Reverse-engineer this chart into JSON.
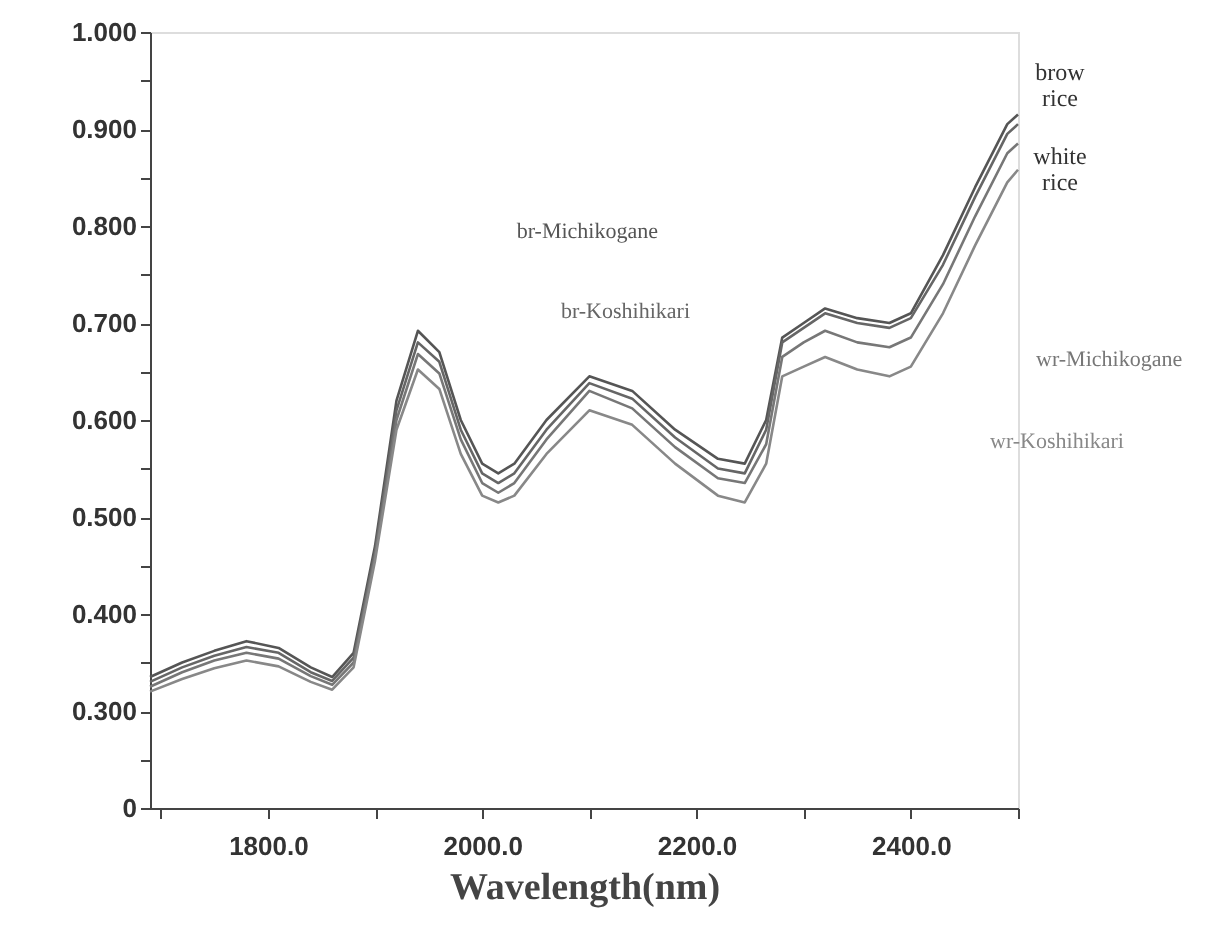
{
  "chart_data": {
    "type": "line",
    "xlabel": "Wavelength(nm)",
    "x": [
      1690,
      1720,
      1750,
      1780,
      1810,
      1840,
      1860,
      1880,
      1900,
      1920,
      1940,
      1960,
      1980,
      2000,
      2015,
      2030,
      2060,
      2100,
      2140,
      2180,
      2220,
      2245,
      2265,
      2280,
      2300,
      2320,
      2350,
      2380,
      2400,
      2430,
      2460,
      2490,
      2500
    ],
    "series": [
      {
        "name": "br-Michikogane",
        "color": "#555555",
        "values": [
          0.335,
          0.35,
          0.362,
          0.372,
          0.365,
          0.345,
          0.335,
          0.36,
          0.47,
          0.62,
          0.692,
          0.67,
          0.6,
          0.555,
          0.545,
          0.555,
          0.6,
          0.645,
          0.63,
          0.59,
          0.56,
          0.555,
          0.6,
          0.685,
          0.7,
          0.715,
          0.705,
          0.7,
          0.71,
          0.77,
          0.84,
          0.905,
          0.915
        ]
      },
      {
        "name": "br-Koshihikari",
        "color": "#666666",
        "values": [
          0.33,
          0.345,
          0.357,
          0.366,
          0.36,
          0.34,
          0.331,
          0.355,
          0.465,
          0.61,
          0.68,
          0.66,
          0.59,
          0.545,
          0.535,
          0.545,
          0.59,
          0.638,
          0.622,
          0.582,
          0.55,
          0.545,
          0.59,
          0.68,
          0.695,
          0.71,
          0.7,
          0.695,
          0.705,
          0.76,
          0.83,
          0.895,
          0.905
        ]
      },
      {
        "name": "wr-Michikogane",
        "color": "#777777",
        "values": [
          0.325,
          0.34,
          0.352,
          0.36,
          0.354,
          0.336,
          0.327,
          0.35,
          0.46,
          0.6,
          0.668,
          0.648,
          0.58,
          0.535,
          0.525,
          0.535,
          0.58,
          0.63,
          0.612,
          0.572,
          0.54,
          0.535,
          0.575,
          0.665,
          0.68,
          0.692,
          0.68,
          0.675,
          0.685,
          0.74,
          0.81,
          0.875,
          0.885
        ]
      },
      {
        "name": "wr-Koshihikari",
        "color": "#888888",
        "values": [
          0.32,
          0.333,
          0.344,
          0.352,
          0.346,
          0.33,
          0.322,
          0.345,
          0.455,
          0.59,
          0.652,
          0.632,
          0.565,
          0.522,
          0.515,
          0.522,
          0.565,
          0.61,
          0.595,
          0.555,
          0.522,
          0.515,
          0.555,
          0.645,
          0.655,
          0.665,
          0.652,
          0.645,
          0.655,
          0.71,
          0.78,
          0.845,
          0.858
        ]
      }
    ],
    "xlim": [
      1690,
      2500
    ],
    "xticks": [
      {
        "value": 1700,
        "label": null
      },
      {
        "value": 1800,
        "label": "1800.0"
      },
      {
        "value": 1900,
        "label": null
      },
      {
        "value": 2000,
        "label": "2000.0"
      },
      {
        "value": 2100,
        "label": null
      },
      {
        "value": 2200,
        "label": "2200.0"
      },
      {
        "value": 2300,
        "label": null
      },
      {
        "value": 2400,
        "label": "2400.0"
      },
      {
        "value": 2500,
        "label": null
      }
    ],
    "ylim": [
      0.2,
      1.0
    ],
    "yticks": [
      {
        "value": 0.2,
        "label": "0"
      },
      {
        "value": 0.25,
        "label": null
      },
      {
        "value": 0.3,
        "label": "0.300"
      },
      {
        "value": 0.35,
        "label": null
      },
      {
        "value": 0.4,
        "label": "0.400"
      },
      {
        "value": 0.45,
        "label": null
      },
      {
        "value": 0.5,
        "label": "0.500"
      },
      {
        "value": 0.55,
        "label": null
      },
      {
        "value": 0.6,
        "label": "0.600"
      },
      {
        "value": 0.65,
        "label": null
      },
      {
        "value": 0.7,
        "label": "0.700"
      },
      {
        "value": 0.75,
        "label": null
      },
      {
        "value": 0.8,
        "label": "0.800"
      },
      {
        "value": 0.85,
        "label": null
      },
      {
        "value": 0.9,
        "label": "0.900"
      },
      {
        "value": 0.95,
        "label": null
      },
      {
        "value": 1.0,
        "label": "1.000"
      }
    ],
    "annotations": [
      "brow rice",
      "white rice"
    ],
    "grid": false,
    "marker": "none",
    "line_style": "solid"
  }
}
